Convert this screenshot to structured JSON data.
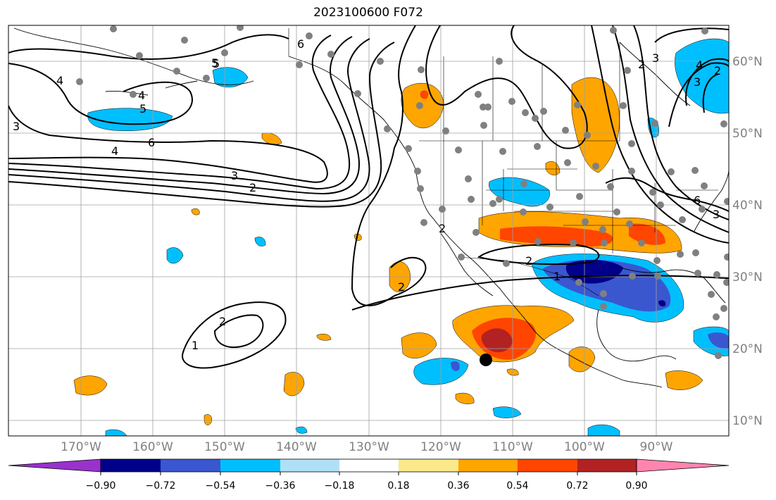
{
  "title": "2023100600 F072",
  "map": {
    "lon_ticks": [
      "170°W",
      "160°W",
      "150°W",
      "140°W",
      "130°W",
      "120°W",
      "110°W",
      "100°W",
      "90°W"
    ],
    "lat_ticks": [
      "60°N",
      "50°N",
      "40°N",
      "30°N",
      "20°N",
      "10°N"
    ],
    "contour_labels": [
      "6",
      "5",
      "4",
      "4",
      "3",
      "3",
      "2",
      "2",
      "1",
      "2",
      "1",
      "2",
      "2",
      "3",
      "6",
      "5",
      "3",
      "4",
      "2",
      "6",
      "5",
      "4",
      "3",
      "2"
    ]
  },
  "colorbar": {
    "ticks": [
      "−0.90",
      "−0.72",
      "−0.54",
      "−0.36",
      "−0.18",
      "0.18",
      "0.36",
      "0.54",
      "0.72",
      "0.90"
    ],
    "colors": [
      "#9932cc",
      "#00008b",
      "#3a57d0",
      "#00bfff",
      "#b0e0f8",
      "#ffffff",
      "#fbe88a",
      "#ffa500",
      "#ff4500",
      "#b22222",
      "#ff85b0"
    ]
  },
  "colors": {
    "contour": "#000000",
    "grid": "#a0a0a0",
    "station_dot": "#808080"
  }
}
